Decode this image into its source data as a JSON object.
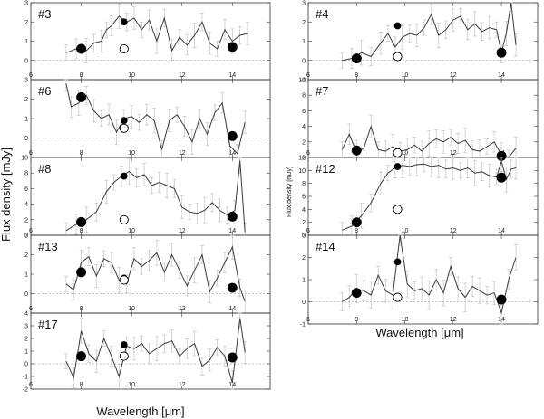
{
  "figure": {
    "ylabel": "Flux density [mJy]",
    "ylabel_small": "Flux density [mJy]",
    "xlabel_left": "Wavelength [μm]",
    "xlabel_right": "Wavelength [μm]"
  },
  "colors": {
    "spectrum": "#3a3a3a",
    "errorbar": "#bfc4c8",
    "marker": "#000000",
    "frame": "#333333"
  },
  "chart_data": [
    {
      "type": "line",
      "label": "#3",
      "ylim": [
        -1,
        3
      ],
      "yticks": [
        0,
        1,
        2,
        3
      ],
      "xlim": [
        6,
        15.5
      ],
      "xticks": [
        6,
        8,
        10,
        12,
        14
      ],
      "show_xticklabels": false,
      "photometry": [
        {
          "x": 8.0,
          "y": 0.6,
          "filled": true
        },
        {
          "x": 9.7,
          "y": 2.0,
          "filled": true
        },
        {
          "x": 9.7,
          "y": 0.6,
          "filled": false
        },
        {
          "x": 14.0,
          "y": 0.7,
          "filled": true
        }
      ],
      "spectrum": {
        "x": [
          7.4,
          7.8,
          8.2,
          8.5,
          8.8,
          9.0,
          9.2,
          9.5,
          9.8,
          10.1,
          10.4,
          10.7,
          11.0,
          11.3,
          11.6,
          11.9,
          12.2,
          12.5,
          12.8,
          13.1,
          13.4,
          13.7,
          14.0,
          14.3,
          14.6
        ],
        "y": [
          0.4,
          0.6,
          0.5,
          0.9,
          1.0,
          1.6,
          1.8,
          2.3,
          2.0,
          2.2,
          1.6,
          2.1,
          1.0,
          2.2,
          0.5,
          1.2,
          0.8,
          1.3,
          2.0,
          0.9,
          0.6,
          1.6,
          1.0,
          1.3,
          1.4
        ]
      }
    },
    {
      "type": "line",
      "label": "#6",
      "ylim": [
        -1,
        3
      ],
      "yticks": [
        0,
        1,
        2,
        3
      ],
      "xlim": [
        6,
        15.5
      ],
      "xticks": [
        6,
        8,
        10,
        12,
        14
      ],
      "show_xticklabels": false,
      "photometry": [
        {
          "x": 8.0,
          "y": 2.1,
          "filled": true
        },
        {
          "x": 9.7,
          "y": 0.9,
          "filled": true
        },
        {
          "x": 9.7,
          "y": 0.5,
          "filled": false
        },
        {
          "x": 14.0,
          "y": 0.1,
          "filled": true
        }
      ],
      "spectrum": {
        "x": [
          7.4,
          7.6,
          7.9,
          8.2,
          8.5,
          8.8,
          9.1,
          9.4,
          9.7,
          10.0,
          10.3,
          10.6,
          10.9,
          11.2,
          11.5,
          11.8,
          12.1,
          12.4,
          12.7,
          13.0,
          13.3,
          13.6,
          13.9,
          14.2,
          14.5
        ],
        "y": [
          2.8,
          1.6,
          1.8,
          2.2,
          1.4,
          1.0,
          1.2,
          0.3,
          1.0,
          1.1,
          0.8,
          1.2,
          0.9,
          -0.6,
          0.9,
          1.2,
          0.6,
          -0.2,
          1.0,
          0.2,
          1.3,
          1.8,
          -0.4,
          -0.8,
          0.8
        ]
      }
    },
    {
      "type": "line",
      "label": "#8",
      "ylim": [
        0,
        10
      ],
      "yticks": [
        0,
        2,
        4,
        6,
        8,
        10
      ],
      "xlim": [
        6,
        15.5
      ],
      "xticks": [
        6,
        8,
        10,
        12,
        14
      ],
      "show_xticklabels": false,
      "photometry": [
        {
          "x": 8.0,
          "y": 1.7,
          "filled": true
        },
        {
          "x": 9.7,
          "y": 7.6,
          "filled": true
        },
        {
          "x": 9.7,
          "y": 2.0,
          "filled": false
        },
        {
          "x": 14.0,
          "y": 2.4,
          "filled": true
        }
      ],
      "spectrum": {
        "x": [
          7.4,
          7.8,
          8.2,
          8.6,
          9.0,
          9.3,
          9.6,
          9.9,
          10.2,
          10.5,
          10.8,
          11.1,
          11.4,
          11.7,
          12.0,
          12.3,
          12.6,
          12.9,
          13.2,
          13.5,
          13.8,
          14.1,
          14.3,
          14.5
        ],
        "y": [
          0.6,
          1.4,
          2.0,
          3.0,
          5.6,
          6.8,
          7.6,
          8.2,
          7.4,
          7.8,
          6.4,
          6.8,
          6.4,
          6.0,
          3.6,
          3.0,
          2.8,
          3.2,
          4.2,
          3.2,
          2.6,
          3.2,
          9.6,
          0.4
        ]
      }
    },
    {
      "type": "line",
      "label": "#13",
      "ylim": [
        -1,
        3
      ],
      "yticks": [
        0,
        1,
        2,
        3
      ],
      "xlim": [
        6,
        15.5
      ],
      "xticks": [
        6,
        8,
        10,
        12,
        14
      ],
      "show_xticklabels": false,
      "photometry": [
        {
          "x": 8.0,
          "y": 1.1,
          "filled": true
        },
        {
          "x": 9.7,
          "y": 0.8,
          "filled": true
        },
        {
          "x": 9.7,
          "y": 0.7,
          "filled": false
        },
        {
          "x": 14.0,
          "y": 0.3,
          "filled": true
        }
      ],
      "spectrum": {
        "x": [
          7.4,
          7.7,
          8.0,
          8.3,
          8.6,
          8.9,
          9.2,
          9.5,
          9.8,
          10.1,
          10.4,
          10.7,
          11.0,
          11.3,
          11.6,
          11.9,
          12.2,
          12.5,
          12.8,
          13.1,
          13.4,
          13.7,
          14.0,
          14.3,
          14.5
        ],
        "y": [
          0.5,
          0.2,
          1.6,
          1.9,
          0.9,
          1.8,
          1.6,
          0.7,
          0.5,
          1.8,
          1.4,
          1.7,
          2.1,
          1.1,
          2.0,
          1.2,
          0.4,
          1.2,
          2.0,
          0.1,
          0.8,
          1.6,
          2.4,
          0.3,
          -0.4
        ]
      }
    },
    {
      "type": "line",
      "label": "#17",
      "ylim": [
        -2,
        4
      ],
      "yticks": [
        -2,
        -1,
        0,
        1,
        2,
        3,
        4
      ],
      "xlim": [
        6,
        15.5
      ],
      "xticks": [
        6,
        8,
        10,
        12,
        14
      ],
      "show_xticklabels": true,
      "photometry": [
        {
          "x": 8.0,
          "y": 0.6,
          "filled": true
        },
        {
          "x": 9.7,
          "y": 1.5,
          "filled": true
        },
        {
          "x": 9.7,
          "y": 0.6,
          "filled": false
        },
        {
          "x": 14.0,
          "y": 0.5,
          "filled": true
        }
      ],
      "spectrum": {
        "x": [
          7.4,
          7.7,
          8.0,
          8.3,
          8.6,
          8.9,
          9.2,
          9.5,
          9.8,
          10.1,
          10.4,
          10.7,
          11.0,
          11.3,
          11.6,
          11.9,
          12.2,
          12.5,
          12.8,
          13.1,
          13.4,
          13.7,
          14.0,
          14.3,
          14.5
        ],
        "y": [
          0.2,
          -1.1,
          2.6,
          0.8,
          0.2,
          2.0,
          0.6,
          -1.0,
          1.4,
          1.2,
          1.6,
          0.8,
          1.2,
          1.6,
          1.8,
          0.6,
          1.2,
          1.6,
          -0.2,
          0.3,
          1.3,
          0.6,
          -1.5,
          3.6,
          0.9
        ]
      }
    },
    {
      "type": "line",
      "label": "#4",
      "ylim": [
        -1,
        3
      ],
      "yticks": [
        -1,
        0,
        1,
        2,
        3
      ],
      "xlim": [
        6,
        15.5
      ],
      "xticks": [
        6,
        8,
        10,
        12,
        14
      ],
      "show_xticklabels": false,
      "photometry": [
        {
          "x": 8.0,
          "y": 0.1,
          "filled": true
        },
        {
          "x": 9.7,
          "y": 1.8,
          "filled": true
        },
        {
          "x": 9.7,
          "y": 0.2,
          "filled": false
        },
        {
          "x": 14.0,
          "y": 0.4,
          "filled": true
        }
      ],
      "spectrum": {
        "x": [
          7.4,
          7.8,
          8.2,
          8.6,
          9.0,
          9.3,
          9.6,
          9.9,
          10.2,
          10.5,
          10.8,
          11.1,
          11.4,
          11.7,
          12.0,
          12.3,
          12.6,
          12.9,
          13.2,
          13.5,
          13.8,
          14.0,
          14.2,
          14.4,
          14.6
        ],
        "y": [
          0.0,
          0.1,
          0.4,
          0.2,
          0.9,
          1.4,
          0.7,
          1.2,
          1.4,
          1.3,
          1.7,
          2.4,
          1.3,
          1.6,
          2.1,
          2.3,
          1.6,
          1.9,
          1.5,
          1.7,
          1.6,
          0.4,
          1.4,
          3.0,
          0.8
        ]
      }
    },
    {
      "type": "line",
      "label": "#7",
      "ylim": [
        0,
        10
      ],
      "yticks": [
        0,
        2,
        4,
        6,
        8,
        10
      ],
      "xlim": [
        6,
        15.5
      ],
      "xticks": [
        6,
        8,
        10,
        12,
        14
      ],
      "show_xticklabels": false,
      "photometry": [
        {
          "x": 8.0,
          "y": 0.9,
          "filled": true
        },
        {
          "x": 9.7,
          "y": 0.7,
          "filled": true
        },
        {
          "x": 9.7,
          "y": 0.6,
          "filled": false
        },
        {
          "x": 14.0,
          "y": 0.2,
          "filled": true
        }
      ],
      "spectrum": {
        "x": [
          7.4,
          7.7,
          8.0,
          8.3,
          8.6,
          8.9,
          9.2,
          9.5,
          9.8,
          10.1,
          10.4,
          10.7,
          11.0,
          11.3,
          11.6,
          11.9,
          12.2,
          12.5,
          12.8,
          13.1,
          13.4,
          13.7,
          14.0,
          14.3,
          14.6
        ],
        "y": [
          1.0,
          3.0,
          0.6,
          1.2,
          4.0,
          1.0,
          0.8,
          1.4,
          0.8,
          1.0,
          1.6,
          0.8,
          1.8,
          2.4,
          2.0,
          2.6,
          1.8,
          2.2,
          1.0,
          0.8,
          1.4,
          2.0,
          0.3,
          -0.2,
          1.2
        ]
      }
    },
    {
      "type": "line",
      "label": "#12",
      "ylim": [
        0,
        12
      ],
      "yticks": [
        0,
        2,
        4,
        6,
        8,
        10,
        12
      ],
      "xlim": [
        6,
        15.5
      ],
      "xticks": [
        6,
        8,
        10,
        12,
        14
      ],
      "show_xticklabels": false,
      "photometry": [
        {
          "x": 8.0,
          "y": 2.0,
          "filled": true
        },
        {
          "x": 9.7,
          "y": 10.6,
          "filled": true
        },
        {
          "x": 9.7,
          "y": 4.0,
          "filled": false
        },
        {
          "x": 14.0,
          "y": 8.9,
          "filled": true
        }
      ],
      "spectrum": {
        "x": [
          7.4,
          7.8,
          8.2,
          8.6,
          9.0,
          9.3,
          9.6,
          9.9,
          10.2,
          10.5,
          10.8,
          11.1,
          11.4,
          11.7,
          12.0,
          12.3,
          12.6,
          12.9,
          13.2,
          13.5,
          13.8,
          14.0,
          14.2,
          14.4,
          14.6
        ],
        "y": [
          0.8,
          1.4,
          3.0,
          5.0,
          8.0,
          9.6,
          10.4,
          10.8,
          10.6,
          10.9,
          11.0,
          10.6,
          10.8,
          10.2,
          10.4,
          10.0,
          10.4,
          9.6,
          9.8,
          9.2,
          9.0,
          11.4,
          8.6,
          10.2,
          10.4
        ]
      }
    },
    {
      "type": "line",
      "label": "#14",
      "ylim": [
        -1,
        3
      ],
      "yticks": [
        -1,
        0,
        1,
        2,
        3
      ],
      "xlim": [
        6,
        15.5
      ],
      "xticks": [
        6,
        8,
        10,
        12,
        14
      ],
      "show_xticklabels": true,
      "photometry": [
        {
          "x": 8.0,
          "y": 0.4,
          "filled": true
        },
        {
          "x": 9.7,
          "y": 1.8,
          "filled": true
        },
        {
          "x": 9.7,
          "y": 0.2,
          "filled": false
        },
        {
          "x": 14.0,
          "y": 0.1,
          "filled": true
        }
      ],
      "spectrum": {
        "x": [
          7.4,
          7.7,
          8.0,
          8.3,
          8.6,
          8.9,
          9.2,
          9.5,
          9.8,
          10.1,
          10.4,
          10.7,
          11.0,
          11.3,
          11.6,
          11.9,
          12.2,
          12.5,
          12.8,
          13.1,
          13.4,
          13.7,
          14.0,
          14.3,
          14.6
        ],
        "y": [
          0.0,
          0.2,
          0.6,
          0.5,
          0.3,
          1.2,
          0.5,
          0.3,
          3.0,
          0.8,
          0.5,
          0.6,
          0.3,
          1.0,
          0.4,
          1.6,
          0.6,
          0.2,
          0.7,
          0.5,
          0.3,
          0.4,
          -0.5,
          1.0,
          2.0
        ]
      }
    }
  ]
}
